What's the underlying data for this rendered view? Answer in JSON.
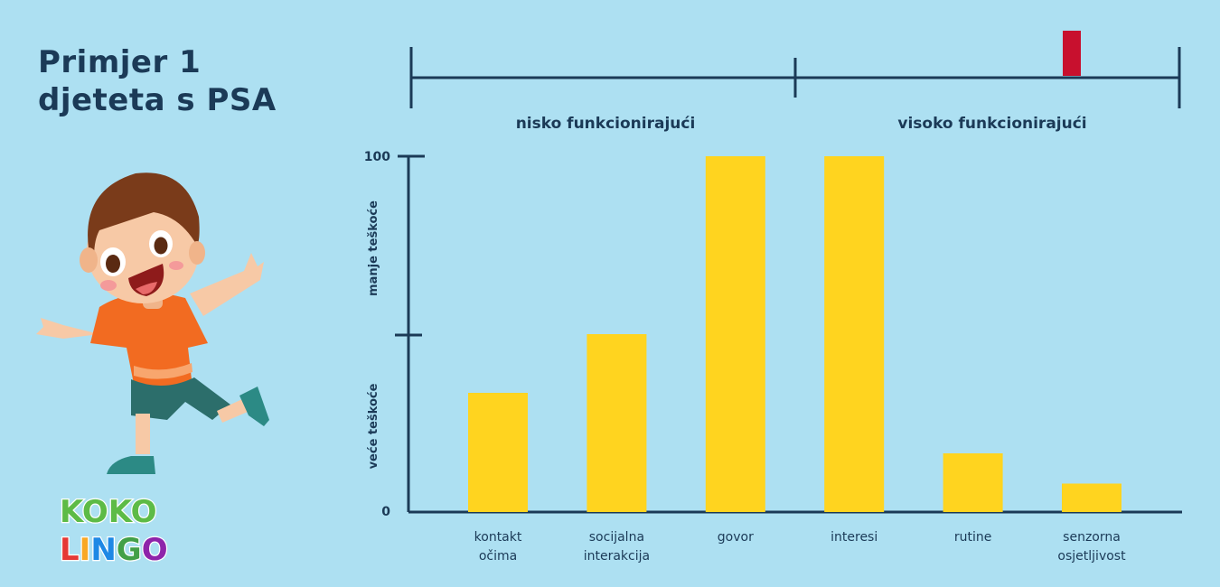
{
  "title": {
    "line1": "Primjer 1",
    "line2": "djeteta s PSA"
  },
  "colors": {
    "background": "#ADE0F2",
    "text": "#1B3A57",
    "bar": "#FFD41F",
    "marker": "#C8102E",
    "axis": "#1B3A57"
  },
  "scale": {
    "left_label": "nisko funkcionirajući",
    "right_label": "visoko funkcionirajući",
    "marker_value": 0.86
  },
  "logo": {
    "line1": [
      "K",
      "O",
      "K",
      "O"
    ],
    "line2": [
      "L",
      "I",
      "N",
      "G",
      "O"
    ],
    "line1_colors": [
      "#5DBB46",
      "#5DBB46",
      "#5DBB46",
      "#5DBB46"
    ],
    "line2_colors": [
      "#E53935",
      "#F9A825",
      "#1E88E5",
      "#43A047",
      "#8E24AA"
    ]
  },
  "chart_data": {
    "type": "bar",
    "categories": [
      [
        "kontakt",
        "očima"
      ],
      [
        "socijalna",
        "interakcija"
      ],
      [
        "govor"
      ],
      [
        "interesi"
      ],
      [
        "rutine"
      ],
      [
        "senzorna",
        "osjetljivost"
      ]
    ],
    "values": [
      33.5,
      50,
      100,
      100,
      16.5,
      8
    ],
    "ylim": [
      0,
      100
    ],
    "yticks": [
      0,
      100
    ],
    "y_annotations": {
      "lower": "veće teškoće",
      "upper": "manje teškoće"
    },
    "grid": false,
    "legend": "none"
  }
}
